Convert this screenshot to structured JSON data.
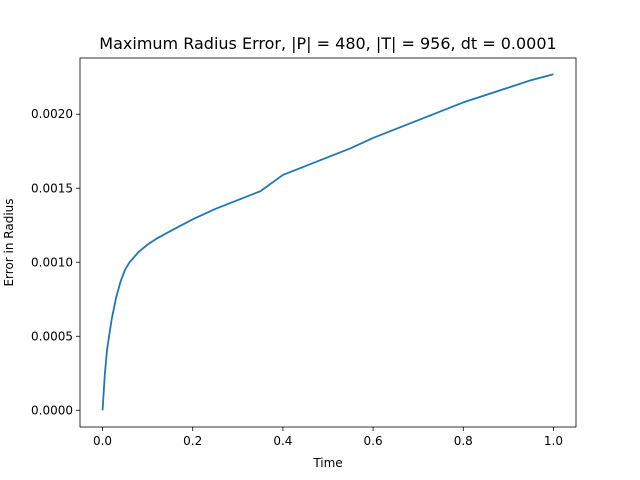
{
  "chart_data": {
    "type": "line",
    "title": "Maximum Radius Error, |P| = 480, |T| = 956, dt = 0.0001",
    "xlabel": "Time",
    "ylabel": "Error in Radius",
    "xlim": [
      -0.05,
      1.05
    ],
    "ylim": [
      -0.000113,
      0.00238
    ],
    "grid": false,
    "x_ticks": [
      0.0,
      0.2,
      0.4,
      0.6,
      0.8,
      1.0
    ],
    "x_tick_labels": [
      "0.0",
      "0.2",
      "0.4",
      "0.6",
      "0.8",
      "1.0"
    ],
    "y_ticks": [
      0.0,
      0.0005,
      0.001,
      0.0015,
      0.002
    ],
    "y_tick_labels": [
      "0.0000",
      "0.0005",
      "0.0010",
      "0.0015",
      "0.0020"
    ],
    "series": [
      {
        "color": "#1f77b4",
        "x": [
          0.0,
          0.005,
          0.01,
          0.02,
          0.03,
          0.04,
          0.05,
          0.06,
          0.08,
          0.1,
          0.12,
          0.15,
          0.2,
          0.25,
          0.3,
          0.35,
          0.4,
          0.45,
          0.5,
          0.55,
          0.6,
          0.65,
          0.7,
          0.75,
          0.8,
          0.85,
          0.9,
          0.95,
          1.0
        ],
        "y": [
          0.0,
          0.00024,
          0.00041,
          0.00061,
          0.00076,
          0.00087,
          0.00095,
          0.001,
          0.00107,
          0.00112,
          0.00116,
          0.00121,
          0.00129,
          0.00136,
          0.00142,
          0.00148,
          0.00159,
          0.00165,
          0.00171,
          0.00177,
          0.00184,
          0.0019,
          0.00196,
          0.00202,
          0.00208,
          0.00213,
          0.00218,
          0.00223,
          0.00227
        ]
      }
    ]
  }
}
